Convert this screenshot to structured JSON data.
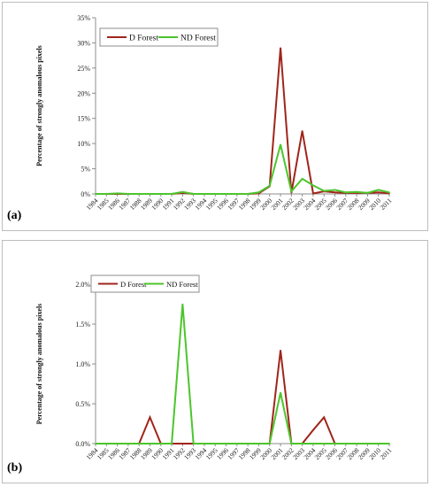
{
  "chart_data": [
    {
      "type": "line",
      "panel_label": "(a)",
      "ylabel": "Percentage of strongly anomalous pixels",
      "categories": [
        "1984",
        "1985",
        "1986",
        "1987",
        "1988",
        "1989",
        "1990",
        "1991",
        "1992",
        "1993",
        "1994",
        "1995",
        "1996",
        "1997",
        "1998",
        "1999",
        "2000",
        "2001",
        "2002",
        "2003",
        "2004",
        "2005",
        "2006",
        "2007",
        "2008",
        "2009",
        "2010",
        "2011"
      ],
      "yticks": [
        "0%",
        "5%",
        "10%",
        "15%",
        "20%",
        "25%",
        "30%",
        "35%"
      ],
      "ylim": [
        0,
        35
      ],
      "legend_position": "top-left",
      "series": [
        {
          "name": "D Forest",
          "color": "#a0251b",
          "values": [
            0,
            0,
            0,
            0,
            0,
            0,
            0,
            0,
            0.2,
            0,
            0,
            0,
            0,
            0,
            0,
            0.1,
            1.5,
            29.0,
            0.2,
            12.5,
            0.1,
            0.5,
            0.3,
            0.2,
            0.2,
            0.2,
            0.3,
            0.1
          ]
        },
        {
          "name": "ND Forest",
          "color": "#4cc52c",
          "values": [
            0,
            0,
            0.1,
            0,
            0,
            0,
            0,
            0,
            0.4,
            0,
            0,
            0,
            0,
            0,
            0,
            0.3,
            1.6,
            9.8,
            0.5,
            3.0,
            1.7,
            0.6,
            0.8,
            0.3,
            0.4,
            0.2,
            0.8,
            0.3
          ]
        }
      ]
    },
    {
      "type": "line",
      "panel_label": "(b)",
      "ylabel": "Percentage of strongly anomalous pixels",
      "categories": [
        "1984",
        "1985",
        "1986",
        "1987",
        "1988",
        "1989",
        "1990",
        "1991",
        "1992",
        "1993",
        "1994",
        "1995",
        "1996",
        "1997",
        "1998",
        "1999",
        "2000",
        "2001",
        "2002",
        "2003",
        "2004",
        "2005",
        "2006",
        "2007",
        "2008",
        "2009",
        "2010",
        "2011"
      ],
      "yticks": [
        "0.0%",
        "0.5%",
        "1.0%",
        "1.5%",
        "2.0%"
      ],
      "ylim": [
        0,
        2.0
      ],
      "legend_position": "top-left",
      "series": [
        {
          "name": "D Forest",
          "color": "#a0251b",
          "values": [
            0,
            0,
            0,
            0,
            0,
            0.33,
            0,
            0,
            0,
            0,
            0,
            0,
            0,
            0,
            0,
            0,
            0,
            1.17,
            0,
            0,
            0.17,
            0.33,
            0,
            0,
            0,
            0,
            0,
            0
          ]
        },
        {
          "name": "ND Forest",
          "color": "#4cc52c",
          "values": [
            0,
            0,
            0,
            0,
            0,
            0,
            0,
            0,
            1.75,
            0,
            0,
            0,
            0,
            0,
            0,
            0,
            0,
            0.64,
            0,
            0,
            0,
            0,
            0,
            0,
            0,
            0,
            0,
            0
          ]
        }
      ]
    }
  ]
}
